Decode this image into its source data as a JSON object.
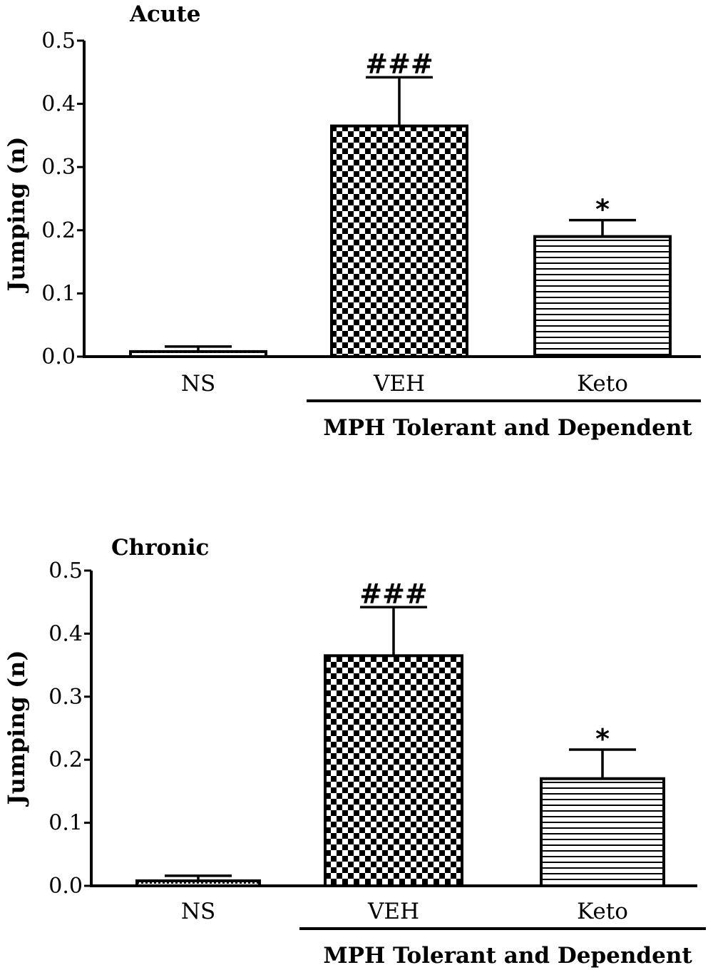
{
  "chart_data": [
    {
      "type": "bar",
      "title": "Acute",
      "ylabel": "Jumping (n)",
      "xlabel": "",
      "categories": [
        "NS",
        "VEH",
        "Keto"
      ],
      "values": [
        0.008,
        0.365,
        0.19
      ],
      "errors": [
        0.008,
        0.077,
        0.026
      ],
      "annotations": [
        "",
        "###",
        "*"
      ],
      "patterns": [
        "dots",
        "checker",
        "hlines"
      ],
      "ylim": [
        0,
        0.5
      ],
      "yticks": [
        0.0,
        0.1,
        0.2,
        0.3,
        0.4,
        0.5
      ],
      "ytick_labels": [
        "0.0",
        "0.1",
        "0.2",
        "0.3",
        "0.4",
        "0.5"
      ],
      "group_label": "MPH Tolerant and Dependent",
      "group_categories": [
        "VEH",
        "Keto"
      ],
      "grid": false
    },
    {
      "type": "bar",
      "title": "Chronic",
      "ylabel": "Jumping (n)",
      "xlabel": "",
      "categories": [
        "NS",
        "VEH",
        "Keto"
      ],
      "values": [
        0.008,
        0.365,
        0.17
      ],
      "errors": [
        0.008,
        0.077,
        0.046
      ],
      "annotations": [
        "",
        "###",
        "*"
      ],
      "patterns": [
        "dots",
        "checker",
        "hlines"
      ],
      "ylim": [
        0,
        0.5
      ],
      "yticks": [
        0.0,
        0.1,
        0.2,
        0.3,
        0.4,
        0.5
      ],
      "ytick_labels": [
        "0.0",
        "0.1",
        "0.2",
        "0.3",
        "0.4",
        "0.5"
      ],
      "group_label": "MPH Tolerant and Dependent",
      "group_categories": [
        "VEH",
        "Keto"
      ],
      "grid": false
    }
  ]
}
